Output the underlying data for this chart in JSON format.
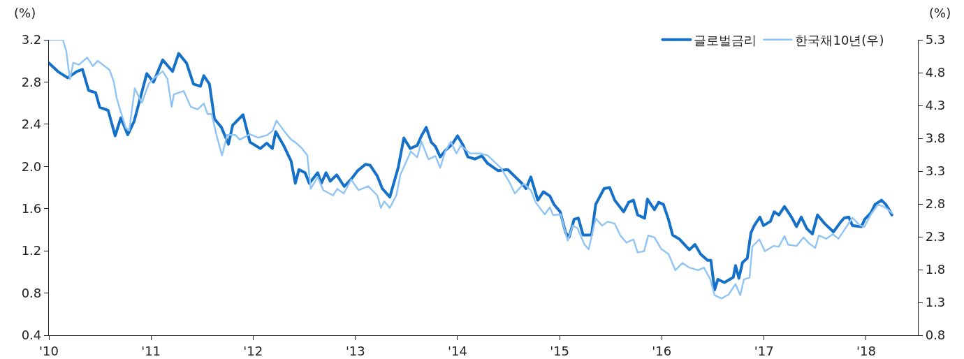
{
  "chart_data": {
    "type": "line",
    "ylabel": "(%)",
    "y2label": "(%)",
    "xlim": [
      "2010-01-01",
      "2018-07-05"
    ],
    "xticks": [
      {
        "value": "2010-01-01",
        "label": "'10"
      },
      {
        "value": "2011-01-01",
        "label": "'11"
      },
      {
        "value": "2012-01-01",
        "label": "'12"
      },
      {
        "value": "2013-01-01",
        "label": "'13"
      },
      {
        "value": "2014-01-01",
        "label": "'14"
      },
      {
        "value": "2015-01-01",
        "label": "'15"
      },
      {
        "value": "2016-01-01",
        "label": "'16"
      },
      {
        "value": "2017-01-01",
        "label": "'17"
      },
      {
        "value": "2018-01-01",
        "label": "'18"
      }
    ],
    "ylim": [
      0.4,
      3.2
    ],
    "yticks": [
      0.4,
      0.8,
      1.2,
      1.6,
      {
        "value": 2,
        "label": "2.0"
      },
      2.4,
      2.8,
      3.2
    ],
    "y2lim": [
      0.8,
      5.3
    ],
    "y2ticks": [
      0.8,
      1.3,
      1.8,
      2.3,
      2.8,
      3.3,
      3.8,
      4.3,
      4.8,
      5.3
    ],
    "grid": false,
    "legend": "top right",
    "marker": "none",
    "line_style": "solid",
    "series": [
      {
        "name": "글로벌금리",
        "color": "#1570c8",
        "axis": "y",
        "x": [
          "2010-01-01",
          "2010-02-02",
          "2010-03-09",
          "2010-04-11",
          "2010-05-01",
          "2010-05-23",
          "2010-06-17",
          "2010-07-02",
          "2010-08-01",
          "2010-08-26",
          "2010-09-15",
          "2010-10-10",
          "2010-11-02",
          "2010-11-22",
          "2010-12-17",
          "2011-01-10",
          "2011-02-12",
          "2011-03-19",
          "2011-04-10",
          "2011-05-08",
          "2011-06-02",
          "2011-06-27",
          "2011-07-09",
          "2011-07-29",
          "2011-08-16",
          "2011-09-10",
          "2011-10-05",
          "2011-10-20",
          "2011-11-26",
          "2011-12-21",
          "2012-01-27",
          "2012-02-19",
          "2012-03-10",
          "2012-03-22",
          "2012-04-21",
          "2012-05-16",
          "2012-05-31",
          "2012-06-13",
          "2012-07-05",
          "2012-07-20",
          "2012-08-19",
          "2012-09-01",
          "2012-09-18",
          "2012-10-03",
          "2012-10-26",
          "2012-11-22",
          "2012-12-17",
          "2013-01-09",
          "2013-02-06",
          "2013-02-23",
          "2013-03-20",
          "2013-04-07",
          "2013-05-04",
          "2013-06-03",
          "2013-06-23",
          "2013-07-16",
          "2013-08-10",
          "2013-08-25",
          "2013-09-11",
          "2013-09-29",
          "2013-10-14",
          "2013-10-31",
          "2013-11-18",
          "2013-12-13",
          "2014-01-01",
          "2014-01-21",
          "2014-02-07",
          "2014-03-04",
          "2014-03-29",
          "2014-04-18",
          "2014-05-26",
          "2014-06-30",
          "2014-08-19",
          "2014-09-03",
          "2014-09-20",
          "2014-10-15",
          "2014-11-04",
          "2014-11-27",
          "2014-12-12",
          "2015-01-03",
          "2015-01-23",
          "2015-02-04",
          "2015-02-22",
          "2015-03-09",
          "2015-03-26",
          "2015-04-25",
          "2015-05-10",
          "2015-06-09",
          "2015-06-29",
          "2015-07-17",
          "2015-08-18",
          "2015-09-05",
          "2015-09-22",
          "2015-10-07",
          "2015-11-01",
          "2015-11-11",
          "2015-12-06",
          "2015-12-21",
          "2016-01-07",
          "2016-01-25",
          "2016-02-09",
          "2016-03-05",
          "2016-04-09",
          "2016-04-29",
          "2016-05-19",
          "2016-06-13",
          "2016-06-25",
          "2016-07-08",
          "2016-07-20",
          "2016-08-12",
          "2016-09-13",
          "2016-09-21",
          "2016-10-03",
          "2016-10-16",
          "2016-11-02",
          "2016-11-15",
          "2016-11-27",
          "2016-12-17",
          "2016-12-30",
          "2017-01-24",
          "2017-02-06",
          "2017-02-23",
          "2017-03-15",
          "2017-04-09",
          "2017-04-27",
          "2017-05-14",
          "2017-06-03",
          "2017-06-23",
          "2017-07-11",
          "2017-08-05",
          "2017-09-06",
          "2017-10-01",
          "2017-10-14",
          "2017-10-31",
          "2017-11-13",
          "2017-12-15",
          "2017-12-27",
          "2018-01-18",
          "2018-02-02",
          "2018-02-25",
          "2018-03-12",
          "2018-03-24",
          "2018-04-03"
        ],
        "values": [
          2.98,
          2.9,
          2.84,
          2.9,
          2.92,
          2.72,
          2.7,
          2.56,
          2.53,
          2.29,
          2.46,
          2.3,
          2.43,
          2.63,
          2.88,
          2.8,
          3.01,
          2.9,
          3.07,
          2.98,
          2.78,
          2.76,
          2.86,
          2.78,
          2.45,
          2.37,
          2.21,
          2.39,
          2.49,
          2.23,
          2.17,
          2.22,
          2.17,
          2.33,
          2.19,
          2.05,
          1.84,
          1.97,
          1.94,
          1.84,
          1.94,
          1.84,
          1.94,
          1.86,
          1.92,
          1.81,
          1.88,
          1.96,
          2.02,
          2.01,
          1.91,
          1.79,
          1.71,
          1.99,
          2.27,
          2.17,
          2.2,
          2.29,
          2.37,
          2.23,
          2.19,
          2.09,
          2.15,
          2.21,
          2.29,
          2.2,
          2.09,
          2.07,
          2.1,
          2.03,
          1.96,
          1.97,
          1.84,
          1.79,
          1.9,
          1.68,
          1.76,
          1.72,
          1.64,
          1.57,
          1.37,
          1.33,
          1.5,
          1.51,
          1.35,
          1.35,
          1.64,
          1.79,
          1.8,
          1.68,
          1.57,
          1.66,
          1.68,
          1.54,
          1.51,
          1.69,
          1.59,
          1.66,
          1.64,
          1.5,
          1.35,
          1.31,
          1.21,
          1.26,
          1.17,
          1.11,
          1.11,
          0.83,
          0.93,
          0.9,
          0.95,
          1.06,
          0.94,
          1.09,
          1.13,
          1.37,
          1.44,
          1.52,
          1.44,
          1.48,
          1.57,
          1.54,
          1.62,
          1.52,
          1.43,
          1.52,
          1.41,
          1.36,
          1.54,
          1.46,
          1.38,
          1.47,
          1.51,
          1.52,
          1.44,
          1.43,
          1.5,
          1.56,
          1.64,
          1.68,
          1.64,
          1.59,
          1.54
        ]
      },
      {
        "name": "한국채10년(우)",
        "color": "#90c4f4",
        "axis": "y2",
        "x": [
          "2010-01-01",
          "2010-02-20",
          "2010-03-04",
          "2010-03-17",
          "2010-03-29",
          "2010-04-18",
          "2010-05-18",
          "2010-06-07",
          "2010-06-25",
          "2010-08-06",
          "2010-08-21",
          "2010-08-31",
          "2010-09-13",
          "2010-10-03",
          "2010-10-15",
          "2010-11-04",
          "2010-11-29",
          "2010-12-24",
          "2011-01-10",
          "2011-02-12",
          "2011-03-01",
          "2011-03-16",
          "2011-03-24",
          "2011-04-28",
          "2011-05-23",
          "2011-06-17",
          "2011-07-09",
          "2011-07-22",
          "2011-08-06",
          "2011-08-23",
          "2011-09-12",
          "2011-09-30",
          "2011-10-30",
          "2011-11-14",
          "2011-12-21",
          "2012-01-20",
          "2012-02-21",
          "2012-03-10",
          "2012-03-25",
          "2012-04-21",
          "2012-05-16",
          "2012-05-31",
          "2012-06-23",
          "2012-07-13",
          "2012-07-25",
          "2012-08-19",
          "2012-09-08",
          "2012-10-13",
          "2012-10-28",
          "2012-11-20",
          "2012-12-17",
          "2013-01-12",
          "2013-02-16",
          "2013-03-20",
          "2013-04-02",
          "2013-04-14",
          "2013-05-04",
          "2013-05-27",
          "2013-06-11",
          "2013-06-28",
          "2013-07-18",
          "2013-08-10",
          "2013-08-25",
          "2013-09-19",
          "2013-10-14",
          "2013-10-31",
          "2013-11-18",
          "2013-12-08",
          "2013-12-28",
          "2014-01-13",
          "2014-02-15",
          "2014-03-22",
          "2014-04-18",
          "2014-06-05",
          "2014-07-07",
          "2014-07-25",
          "2014-08-26",
          "2014-09-20",
          "2014-10-08",
          "2014-11-09",
          "2014-11-27",
          "2014-12-09",
          "2015-01-05",
          "2015-01-30",
          "2015-02-17",
          "2015-03-06",
          "2015-03-31",
          "2015-04-15",
          "2015-05-10",
          "2015-06-02",
          "2015-06-22",
          "2015-07-17",
          "2015-08-06",
          "2015-08-28",
          "2015-09-22",
          "2015-10-07",
          "2015-10-30",
          "2015-11-14",
          "2015-12-06",
          "2015-12-31",
          "2016-01-25",
          "2016-02-19",
          "2016-03-15",
          "2016-04-09",
          "2016-05-11",
          "2016-05-31",
          "2016-06-23",
          "2016-07-08",
          "2016-08-02",
          "2016-08-27",
          "2016-09-21",
          "2016-10-08",
          "2016-10-21",
          "2016-11-10",
          "2016-11-20",
          "2016-12-15",
          "2017-01-04",
          "2017-02-03",
          "2017-02-23",
          "2017-03-15",
          "2017-03-28",
          "2017-04-27",
          "2017-05-22",
          "2017-06-11",
          "2017-07-03",
          "2017-07-16",
          "2017-08-12",
          "2017-09-04",
          "2017-09-24",
          "2017-10-19",
          "2017-11-13",
          "2017-12-08",
          "2017-12-25",
          "2018-01-18",
          "2018-02-12",
          "2018-02-27",
          "2018-03-22",
          "2018-04-03"
        ],
        "values": [
          5.3,
          5.3,
          5.13,
          4.7,
          4.95,
          4.92,
          5.03,
          4.9,
          4.98,
          4.84,
          4.66,
          4.42,
          4.23,
          3.96,
          3.92,
          4.56,
          4.34,
          4.63,
          4.71,
          4.82,
          4.7,
          4.28,
          4.47,
          4.52,
          4.28,
          4.24,
          4.33,
          4.17,
          4.17,
          3.85,
          3.54,
          3.85,
          3.85,
          3.78,
          3.86,
          3.81,
          3.85,
          3.91,
          4.07,
          3.91,
          3.78,
          3.74,
          3.65,
          3.54,
          3.03,
          3.21,
          3.01,
          2.93,
          3.03,
          2.96,
          3.17,
          3.01,
          3.07,
          2.93,
          2.74,
          2.84,
          2.74,
          2.93,
          3.25,
          3.41,
          3.6,
          3.51,
          3.75,
          3.48,
          3.53,
          3.35,
          3.6,
          3.75,
          3.57,
          3.69,
          3.57,
          3.57,
          3.54,
          3.35,
          3.12,
          2.96,
          3.11,
          3.01,
          2.82,
          2.64,
          2.75,
          2.63,
          2.64,
          2.24,
          2.47,
          2.43,
          2.18,
          2.11,
          2.58,
          2.47,
          2.53,
          2.5,
          2.32,
          2.21,
          2.26,
          2.06,
          2.08,
          2.32,
          2.29,
          2.11,
          2.04,
          1.79,
          1.9,
          1.83,
          1.79,
          1.83,
          1.65,
          1.41,
          1.36,
          1.42,
          1.58,
          1.41,
          1.65,
          1.68,
          2.15,
          2.26,
          2.08,
          2.16,
          2.15,
          2.31,
          2.18,
          2.16,
          2.29,
          2.2,
          2.13,
          2.32,
          2.27,
          2.34,
          2.27,
          2.43,
          2.59,
          2.48,
          2.45,
          2.64,
          2.79,
          2.77,
          2.71,
          2.66
        ]
      }
    ]
  }
}
